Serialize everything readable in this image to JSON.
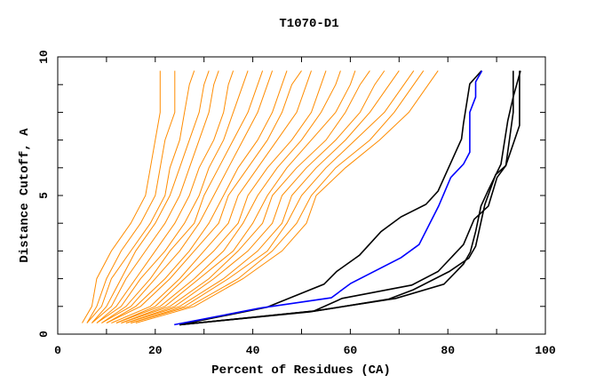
{
  "chart_data": {
    "type": "line",
    "title": "T1070-D1",
    "xlabel": "Percent of Residues (CA)",
    "ylabel": "Distance Cutoff, A",
    "xlim": [
      0,
      100
    ],
    "ylim": [
      0,
      10
    ],
    "x_tick_labels": [
      "0",
      "20",
      "40",
      "60",
      "80",
      "100"
    ],
    "x_tick_values": [
      0,
      20,
      40,
      60,
      80,
      100
    ],
    "y_tick_labels": [
      "0",
      "5",
      "10"
    ],
    "y_tick_values": [
      0,
      5,
      10
    ],
    "grid": false,
    "colors": {
      "other_models": "#ff8c00",
      "highlight": "#0000ff",
      "top_models": "#000000"
    },
    "orange_y": [
      0.4,
      1,
      2,
      3,
      4,
      5,
      6,
      7,
      8,
      9,
      9.5
    ],
    "orange_series": [
      [
        5,
        7,
        8,
        11,
        15,
        18,
        19,
        20,
        21,
        21,
        21
      ],
      [
        6,
        8,
        10,
        13,
        17,
        20,
        21,
        22,
        24,
        24,
        24
      ],
      [
        6,
        9,
        11,
        15,
        19,
        22,
        23,
        25,
        26,
        27,
        28
      ],
      [
        7,
        10,
        13,
        16,
        20,
        23,
        25,
        27,
        29,
        30,
        31
      ],
      [
        7,
        11,
        14,
        18,
        22,
        25,
        27,
        29,
        31,
        32,
        33
      ],
      [
        8,
        12,
        16,
        20,
        24,
        27,
        29,
        32,
        34,
        35,
        36
      ],
      [
        8,
        13,
        17,
        22,
        26,
        29,
        31,
        34,
        36,
        38,
        39
      ],
      [
        9,
        14,
        19,
        23,
        28,
        30,
        33,
        36,
        39,
        41,
        42
      ],
      [
        9,
        15,
        20,
        25,
        29,
        32,
        35,
        38,
        41,
        43,
        44
      ],
      [
        10,
        16,
        22,
        27,
        31,
        34,
        37,
        41,
        44,
        46,
        47
      ],
      [
        10,
        17,
        23,
        28,
        33,
        35,
        39,
        43,
        46,
        48,
        50
      ],
      [
        11,
        19,
        25,
        30,
        35,
        37,
        41,
        45,
        49,
        51,
        52
      ],
      [
        12,
        20,
        26,
        32,
        37,
        39,
        43,
        48,
        52,
        54,
        55
      ],
      [
        12,
        21,
        28,
        34,
        38,
        41,
        45,
        50,
        54,
        57,
        58
      ],
      [
        13,
        22,
        29,
        36,
        40,
        43,
        47,
        52,
        57,
        60,
        61
      ],
      [
        13,
        23,
        31,
        37,
        42,
        44,
        49,
        55,
        59,
        62,
        64
      ],
      [
        14,
        24,
        32,
        39,
        44,
        46,
        51,
        57,
        62,
        65,
        67
      ],
      [
        14,
        25,
        34,
        41,
        46,
        48,
        53,
        59,
        64,
        68,
        70
      ],
      [
        15,
        26,
        35,
        43,
        47,
        50,
        55,
        61,
        67,
        71,
        73
      ],
      [
        15,
        27,
        37,
        44,
        49,
        52,
        57,
        64,
        69,
        73,
        75
      ],
      [
        16,
        28,
        38,
        46,
        51,
        53,
        59,
        66,
        72,
        76,
        78
      ]
    ],
    "highlight_series": {
      "x": [
        23.9,
        41.5,
        56.1,
        60.1,
        70.4,
        74.1,
        78.1,
        80.6,
        83.2,
        84.5,
        84.5,
        85.7,
        85.7,
        87.0
      ],
      "y": [
        0.34,
        0.94,
        1.31,
        1.83,
        2.76,
        3.23,
        4.62,
        5.65,
        6.13,
        6.56,
        8.0,
        8.55,
        9.1,
        9.5
      ]
    },
    "black_series": [
      {
        "x": [
          25,
          42.9,
          54.6,
          57.2,
          61.9,
          66.3,
          70.4,
          75.5,
          78,
          82.8,
          83.2,
          84.5,
          86.9
        ],
        "y": [
          0.34,
          0.97,
          1.8,
          2.26,
          2.85,
          3.7,
          4.23,
          4.68,
          5.16,
          7.04,
          7.6,
          9.03,
          9.5
        ]
      },
      {
        "x": [
          25,
          52.5,
          58.3,
          72.6,
          78,
          83.2,
          85.4,
          88.3,
          90.1,
          91.9,
          93.4,
          93.4
        ],
        "y": [
          0.34,
          0.83,
          1.29,
          1.77,
          2.26,
          3.23,
          4.14,
          4.62,
          5.65,
          6.08,
          8.0,
          9.5
        ]
      },
      {
        "x": [
          25,
          52.5,
          69.3,
          79.2,
          83.2,
          84.6,
          85.7,
          86.8,
          88.3,
          90.9,
          92.3,
          93.4,
          94.9
        ],
        "y": [
          0.34,
          0.83,
          1.29,
          1.8,
          2.53,
          2.96,
          3.7,
          4.62,
          5.2,
          6.13,
          7.7,
          8.55,
          9.5
        ]
      },
      {
        "x": [
          25,
          51.7,
          67.8,
          72.9,
          80.3,
          84.3,
          85.7,
          87.6,
          89.8,
          91.9,
          94.7,
          94.7
        ],
        "y": [
          0.34,
          0.8,
          1.26,
          1.6,
          2.26,
          2.74,
          3.17,
          4.68,
          5.75,
          6.08,
          7.53,
          9.5
        ]
      }
    ]
  }
}
